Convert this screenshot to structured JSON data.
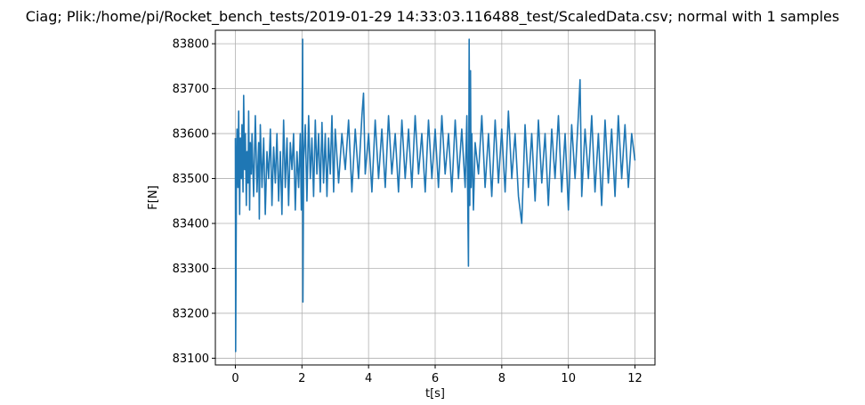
{
  "chart_data": {
    "type": "line",
    "title": "Ciag; Plik:/home/pi/Rocket_bench_tests/2019-01-29 14:33:03.116488_test/ScaledData.csv; normal with 1 samples",
    "xlabel": "t[s]",
    "ylabel": "F[N]",
    "xlim": [
      -0.6,
      12.6
    ],
    "ylim": [
      83085,
      83830
    ],
    "xticks": [
      0,
      2,
      4,
      6,
      8,
      10,
      12
    ],
    "xtick_labels": [
      "0",
      "2",
      "4",
      "6",
      "8",
      "10",
      "12"
    ],
    "yticks": [
      83100,
      83200,
      83300,
      83400,
      83500,
      83600,
      83700,
      83800
    ],
    "ytick_labels": [
      "83100",
      "83200",
      "83300",
      "83400",
      "83500",
      "83600",
      "83700",
      "83800"
    ],
    "grid": true,
    "series": [
      {
        "color": "#1f77b4",
        "x": [
          0.0,
          0.01,
          0.03,
          0.05,
          0.08,
          0.1,
          0.13,
          0.15,
          0.18,
          0.2,
          0.23,
          0.25,
          0.28,
          0.3,
          0.33,
          0.35,
          0.38,
          0.4,
          0.43,
          0.45,
          0.48,
          0.5,
          0.55,
          0.6,
          0.65,
          0.7,
          0.72,
          0.75,
          0.8,
          0.85,
          0.9,
          0.95,
          1.0,
          1.05,
          1.1,
          1.15,
          1.2,
          1.25,
          1.3,
          1.35,
          1.4,
          1.45,
          1.5,
          1.55,
          1.6,
          1.65,
          1.7,
          1.75,
          1.8,
          1.85,
          1.9,
          1.95,
          1.98,
          2.0,
          2.02,
          2.03,
          2.05,
          2.1,
          2.15,
          2.2,
          2.25,
          2.3,
          2.35,
          2.4,
          2.45,
          2.5,
          2.55,
          2.6,
          2.65,
          2.7,
          2.75,
          2.8,
          2.85,
          2.9,
          2.95,
          3.0,
          3.1,
          3.2,
          3.3,
          3.4,
          3.5,
          3.6,
          3.7,
          3.8,
          3.85,
          3.9,
          4.0,
          4.1,
          4.2,
          4.3,
          4.4,
          4.5,
          4.6,
          4.7,
          4.8,
          4.9,
          5.0,
          5.1,
          5.2,
          5.3,
          5.4,
          5.5,
          5.6,
          5.7,
          5.8,
          5.9,
          6.0,
          6.1,
          6.2,
          6.3,
          6.4,
          6.5,
          6.6,
          6.7,
          6.8,
          6.9,
          6.95,
          7.0,
          7.02,
          7.04,
          7.06,
          7.08,
          7.1,
          7.15,
          7.2,
          7.3,
          7.4,
          7.5,
          7.6,
          7.7,
          7.8,
          7.9,
          8.0,
          8.1,
          8.2,
          8.3,
          8.4,
          8.5,
          8.6,
          8.7,
          8.8,
          8.9,
          9.0,
          9.1,
          9.2,
          9.3,
          9.4,
          9.5,
          9.6,
          9.7,
          9.8,
          9.9,
          10.0,
          10.1,
          10.2,
          10.3,
          10.35,
          10.4,
          10.5,
          10.6,
          10.7,
          10.8,
          10.9,
          11.0,
          11.1,
          11.2,
          11.3,
          11.4,
          11.5,
          11.6,
          11.7,
          11.8,
          11.9,
          12.0
        ],
        "y": [
          83590,
          83115,
          83460,
          83610,
          83480,
          83650,
          83420,
          83590,
          83500,
          83620,
          83470,
          83685,
          83520,
          83600,
          83440,
          83560,
          83490,
          83650,
          83430,
          83580,
          83510,
          83600,
          83460,
          83640,
          83470,
          83580,
          83410,
          83620,
          83480,
          83590,
          83420,
          83560,
          83500,
          83610,
          83440,
          83570,
          83490,
          83600,
          83450,
          83560,
          83420,
          83630,
          83480,
          83590,
          83440,
          83580,
          83520,
          83600,
          83430,
          83560,
          83480,
          83600,
          83430,
          83560,
          83810,
          83225,
          83540,
          83620,
          83450,
          83640,
          83500,
          83590,
          83460,
          83630,
          83510,
          83600,
          83470,
          83625,
          83490,
          83600,
          83460,
          83590,
          83510,
          83640,
          83470,
          83610,
          83490,
          83600,
          83520,
          83630,
          83470,
          83610,
          83500,
          83640,
          83690,
          83510,
          83600,
          83470,
          83630,
          83500,
          83610,
          83480,
          83640,
          83510,
          83600,
          83470,
          83630,
          83500,
          83610,
          83480,
          83640,
          83510,
          83600,
          83470,
          83630,
          83500,
          83610,
          83480,
          83640,
          83510,
          83600,
          83470,
          83630,
          83500,
          83610,
          83480,
          83640,
          83305,
          83810,
          83440,
          83740,
          83480,
          83600,
          83430,
          83580,
          83510,
          83640,
          83480,
          83600,
          83460,
          83630,
          83490,
          83610,
          83470,
          83650,
          83500,
          83600,
          83460,
          83400,
          83620,
          83480,
          83600,
          83450,
          83630,
          83490,
          83600,
          83440,
          83610,
          83500,
          83640,
          83470,
          83600,
          83430,
          83620,
          83500,
          83640,
          83720,
          83460,
          83610,
          83500,
          83640,
          83470,
          83600,
          83440,
          83630,
          83490,
          83610,
          83460,
          83640,
          83500,
          83620,
          83480,
          83600,
          83540
        ]
      }
    ]
  }
}
